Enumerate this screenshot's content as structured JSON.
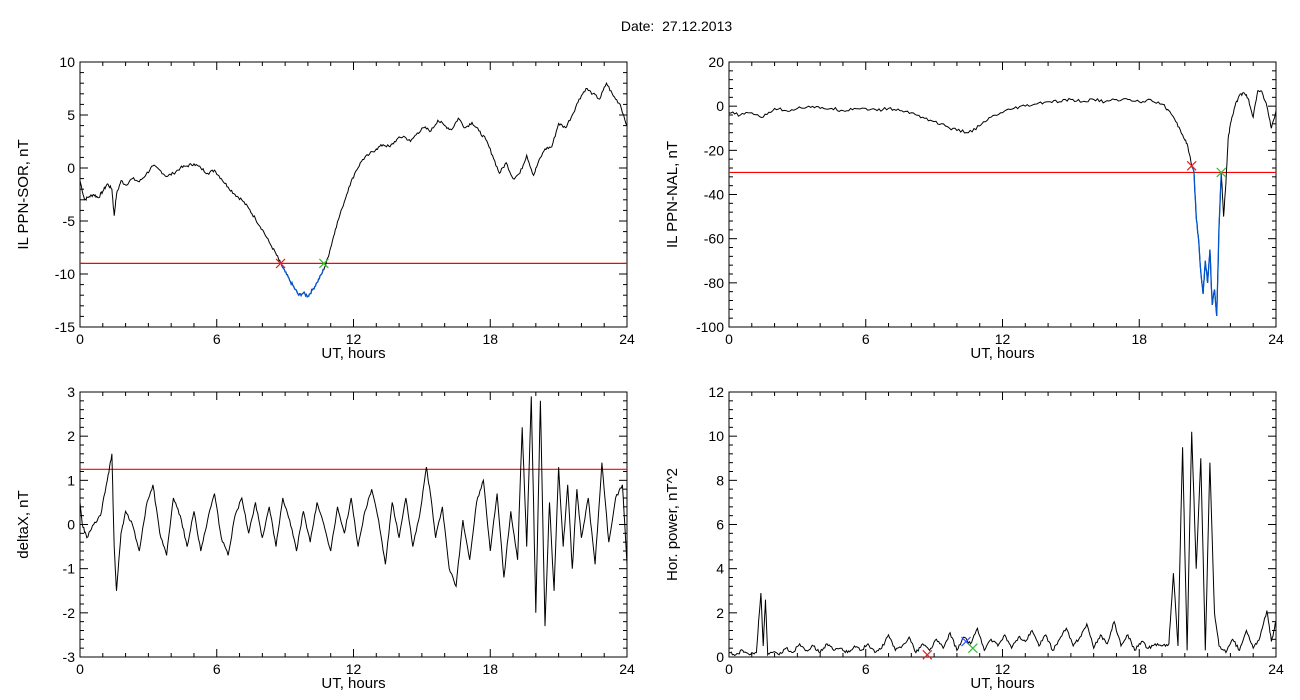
{
  "title": "Date:  27.12.2013",
  "colors": {
    "data": "#000000",
    "threshold": "#ff0000",
    "highlight": "#0055cc",
    "start_marker": "#dd2222",
    "end_marker": "#33bb33",
    "peak_marker": "#3355ff"
  },
  "chart_data": [
    {
      "type": "line",
      "panel": "top-left",
      "title": "",
      "xlabel": "UT, hours",
      "ylabel": "IL PPN-SOR, nT",
      "xlim": [
        0,
        24
      ],
      "ylim": [
        -15,
        10
      ],
      "xticks": [
        0,
        6,
        12,
        18,
        24
      ],
      "yticks": [
        -15,
        -10,
        -5,
        0,
        5,
        10
      ],
      "grid": false,
      "threshold": -9,
      "highlight_range": [
        8.8,
        10.7
      ],
      "markers": [
        {
          "x": 8.8,
          "y": -9,
          "kind": "start"
        },
        {
          "x": 10.7,
          "y": -9,
          "kind": "end"
        }
      ],
      "x": [
        0,
        0.2,
        0.4,
        0.6,
        0.8,
        1.0,
        1.2,
        1.4,
        1.5,
        1.6,
        1.8,
        2.0,
        2.3,
        2.6,
        2.9,
        3.2,
        3.5,
        3.8,
        4.1,
        4.4,
        4.7,
        5.0,
        5.3,
        5.6,
        5.9,
        6.2,
        6.5,
        6.8,
        7.1,
        7.4,
        7.7,
        8.0,
        8.3,
        8.6,
        8.8,
        9.0,
        9.2,
        9.4,
        9.6,
        9.8,
        10.0,
        10.2,
        10.4,
        10.6,
        10.8,
        11.0,
        11.2,
        11.5,
        11.8,
        12.1,
        12.4,
        12.7,
        13.0,
        13.3,
        13.6,
        13.9,
        14.2,
        14.5,
        14.8,
        15.1,
        15.4,
        15.7,
        16.0,
        16.3,
        16.6,
        16.9,
        17.2,
        17.5,
        17.8,
        18.1,
        18.4,
        18.7,
        19.0,
        19.3,
        19.6,
        19.9,
        20.1,
        20.4,
        20.7,
        21.0,
        21.3,
        21.6,
        21.9,
        22.2,
        22.5,
        22.8,
        23.1,
        23.4,
        23.7,
        24.0
      ],
      "y": [
        -1.2,
        -3.0,
        -2.7,
        -2.5,
        -2.8,
        -2.2,
        -1.5,
        -2.0,
        -4.5,
        -2.5,
        -1.2,
        -1.6,
        -1.0,
        -1.3,
        -0.6,
        0.2,
        -0.2,
        -0.8,
        -0.5,
        0.0,
        0.2,
        0.4,
        0.0,
        -0.5,
        -0.2,
        -1.0,
        -1.8,
        -2.5,
        -3.0,
        -3.8,
        -4.8,
        -5.8,
        -7.0,
        -8.1,
        -9.0,
        -9.8,
        -10.6,
        -11.3,
        -12.0,
        -11.8,
        -12.1,
        -11.5,
        -10.8,
        -10.0,
        -9.0,
        -7.5,
        -5.8,
        -3.8,
        -1.8,
        -0.3,
        0.8,
        1.3,
        1.8,
        2.2,
        2.0,
        2.7,
        3.0,
        2.5,
        3.3,
        3.8,
        3.5,
        4.5,
        4.0,
        3.6,
        4.7,
        3.8,
        4.3,
        3.5,
        2.7,
        1.2,
        -0.5,
        0.5,
        -1.0,
        -0.5,
        1.2,
        -0.7,
        0.5,
        1.8,
        2.0,
        4.2,
        3.8,
        5.0,
        6.5,
        7.5,
        7.0,
        6.5,
        8.0,
        6.8,
        6.0,
        4.0
      ]
    },
    {
      "type": "line",
      "panel": "top-right",
      "title": "",
      "xlabel": "UT, hours",
      "ylabel": "IL PPN-NAL, nT",
      "xlim": [
        0,
        24
      ],
      "ylim": [
        -100,
        20
      ],
      "xticks": [
        0,
        6,
        12,
        18,
        24
      ],
      "yticks": [
        -100,
        -80,
        -60,
        -40,
        -20,
        0,
        20
      ],
      "grid": false,
      "threshold": -30,
      "highlight_range": [
        20.3,
        21.6
      ],
      "markers": [
        {
          "x": 20.3,
          "y": -27,
          "kind": "start"
        },
        {
          "x": 21.6,
          "y": -30,
          "kind": "end"
        }
      ],
      "x": [
        0,
        0.5,
        1.0,
        1.5,
        2.0,
        2.5,
        3.0,
        3.5,
        4.0,
        4.5,
        5.0,
        5.5,
        6.0,
        6.5,
        7.0,
        7.5,
        8.0,
        8.5,
        9.0,
        9.5,
        10.0,
        10.5,
        11.0,
        11.5,
        12.0,
        12.5,
        13.0,
        13.5,
        14.0,
        14.5,
        15.0,
        15.5,
        16.0,
        16.5,
        17.0,
        17.5,
        18.0,
        18.5,
        19.0,
        19.3,
        19.6,
        19.9,
        20.1,
        20.3,
        20.4,
        20.5,
        20.6,
        20.7,
        20.8,
        20.9,
        21.0,
        21.1,
        21.2,
        21.3,
        21.4,
        21.5,
        21.6,
        21.7,
        21.8,
        21.9,
        22.0,
        22.2,
        22.4,
        22.6,
        22.8,
        23.0,
        23.2,
        23.4,
        23.6,
        23.8,
        24.0
      ],
      "y": [
        -3,
        -4,
        -3,
        -5,
        -1,
        -2,
        -1,
        0,
        -1,
        -1,
        -2,
        -1,
        -1,
        -2,
        -1,
        -2,
        -3,
        -5,
        -7,
        -9,
        -11,
        -12,
        -9,
        -5,
        -3,
        -1,
        0,
        1,
        2,
        2,
        3,
        2,
        3,
        2,
        3,
        3,
        2,
        3,
        1,
        -2,
        -7,
        -13,
        -17,
        -27,
        -30,
        -50,
        -60,
        -75,
        -85,
        -70,
        -80,
        -65,
        -90,
        -83,
        -95,
        -55,
        -30,
        -50,
        -35,
        -15,
        -8,
        0,
        5,
        6,
        3,
        -5,
        7,
        6,
        0,
        -10,
        -2
      ]
    },
    {
      "type": "line",
      "panel": "bottom-left",
      "title": "",
      "xlabel": "UT, hours",
      "ylabel": "deltaX, nT",
      "xlim": [
        0,
        24
      ],
      "ylim": [
        -3,
        3
      ],
      "xticks": [
        0,
        6,
        12,
        18,
        24
      ],
      "yticks": [
        -3,
        -2,
        -1,
        0,
        1,
        2,
        3
      ],
      "grid": false,
      "threshold": 1.25,
      "x": [
        0,
        0.1,
        0.3,
        0.6,
        0.9,
        1.2,
        1.4,
        1.5,
        1.6,
        1.8,
        2.0,
        2.3,
        2.6,
        2.9,
        3.2,
        3.5,
        3.8,
        4.1,
        4.4,
        4.7,
        5.0,
        5.3,
        5.6,
        5.9,
        6.2,
        6.5,
        6.8,
        7.1,
        7.4,
        7.7,
        8.0,
        8.3,
        8.6,
        8.9,
        9.2,
        9.5,
        9.8,
        10.1,
        10.4,
        10.7,
        11.0,
        11.3,
        11.6,
        11.9,
        12.2,
        12.5,
        12.8,
        13.1,
        13.4,
        13.7,
        14.0,
        14.3,
        14.6,
        14.9,
        15.2,
        15.4,
        15.6,
        15.9,
        16.2,
        16.5,
        16.8,
        17.1,
        17.4,
        17.7,
        18.0,
        18.3,
        18.6,
        18.9,
        19.2,
        19.4,
        19.6,
        19.8,
        20.0,
        20.2,
        20.4,
        20.6,
        20.8,
        21.0,
        21.2,
        21.4,
        21.6,
        21.8,
        22.0,
        22.3,
        22.6,
        22.9,
        23.2,
        23.5,
        23.8,
        24.0
      ],
      "y": [
        0.5,
        0.0,
        -0.3,
        0.0,
        0.2,
        1.0,
        1.6,
        -0.5,
        -1.5,
        -0.2,
        0.3,
        0.0,
        -0.6,
        0.4,
        0.9,
        -0.2,
        -0.7,
        0.6,
        0.2,
        -0.5,
        0.3,
        -0.6,
        0.1,
        0.7,
        -0.3,
        -0.7,
        0.2,
        0.6,
        -0.2,
        0.5,
        -0.3,
        0.4,
        -0.5,
        0.6,
        0.1,
        -0.6,
        0.3,
        -0.4,
        0.5,
        0.0,
        -0.6,
        0.4,
        -0.2,
        0.6,
        -0.5,
        0.3,
        0.8,
        0.1,
        -0.9,
        0.5,
        -0.3,
        0.6,
        -0.5,
        0.2,
        1.3,
        0.6,
        -0.3,
        0.4,
        -1.0,
        -1.4,
        0.1,
        -0.8,
        0.5,
        1.0,
        -0.6,
        0.7,
        -1.2,
        0.3,
        -0.8,
        2.2,
        -0.5,
        2.9,
        -2.0,
        2.8,
        -2.3,
        0.5,
        -1.5,
        1.3,
        -0.5,
        0.9,
        -1.0,
        0.8,
        -0.3,
        0.6,
        -0.9,
        1.4,
        -0.4,
        0.6,
        0.9,
        -0.9
      ]
    },
    {
      "type": "line",
      "panel": "bottom-right",
      "title": "",
      "xlabel": "UT, hours",
      "ylabel": "Hor. power, nT^2",
      "xlim": [
        0,
        24
      ],
      "ylim": [
        0,
        12
      ],
      "xticks": [
        0,
        6,
        12,
        18,
        24
      ],
      "yticks": [
        0,
        2,
        4,
        6,
        8,
        10,
        12
      ],
      "grid": false,
      "markers": [
        {
          "x": 8.7,
          "y": 0.1,
          "kind": "start"
        },
        {
          "x": 10.4,
          "y": 0.7,
          "kind": "peak"
        },
        {
          "x": 10.7,
          "y": 0.4,
          "kind": "end"
        }
      ],
      "x": [
        0,
        0.3,
        0.6,
        0.9,
        1.2,
        1.4,
        1.5,
        1.6,
        1.7,
        1.9,
        2.2,
        2.5,
        2.8,
        3.1,
        3.4,
        3.7,
        4.0,
        4.3,
        4.6,
        4.9,
        5.2,
        5.5,
        5.8,
        6.1,
        6.4,
        6.7,
        7.0,
        7.3,
        7.6,
        7.9,
        8.2,
        8.5,
        8.8,
        9.1,
        9.4,
        9.7,
        10.0,
        10.3,
        10.6,
        10.9,
        11.2,
        11.5,
        11.8,
        12.1,
        12.4,
        12.7,
        13.0,
        13.3,
        13.6,
        13.9,
        14.2,
        14.5,
        14.8,
        15.1,
        15.4,
        15.7,
        16.0,
        16.3,
        16.6,
        16.9,
        17.2,
        17.5,
        17.8,
        18.1,
        18.4,
        18.7,
        19.0,
        19.3,
        19.5,
        19.7,
        19.9,
        20.1,
        20.3,
        20.5,
        20.7,
        20.9,
        21.1,
        21.3,
        21.5,
        21.8,
        22.1,
        22.4,
        22.7,
        23.0,
        23.3,
        23.6,
        23.8,
        24.0
      ],
      "y": [
        0.2,
        0.1,
        0.3,
        0.1,
        0.2,
        2.9,
        0.5,
        2.6,
        0.1,
        0.2,
        0.1,
        0.4,
        0.2,
        0.6,
        0.3,
        0.5,
        0.2,
        0.6,
        0.3,
        0.4,
        0.2,
        0.5,
        0.3,
        0.6,
        0.2,
        0.4,
        1.0,
        0.3,
        0.5,
        0.9,
        0.2,
        0.6,
        0.3,
        0.8,
        0.4,
        1.1,
        0.3,
        0.9,
        0.6,
        1.3,
        0.3,
        0.8,
        0.5,
        1.0,
        0.4,
        0.9,
        0.7,
        1.2,
        0.5,
        1.0,
        0.3,
        0.8,
        1.3,
        0.5,
        0.9,
        1.5,
        0.4,
        1.0,
        0.6,
        1.6,
        0.5,
        1.0,
        0.3,
        0.7,
        0.4,
        0.6,
        0.5,
        0.6,
        3.8,
        0.5,
        9.5,
        0.3,
        10.2,
        4.0,
        9.0,
        0.3,
        8.8,
        2.0,
        0.5,
        0.2,
        0.8,
        0.3,
        1.2,
        0.4,
        0.9,
        2.1,
        0.7,
        1.6
      ]
    }
  ]
}
